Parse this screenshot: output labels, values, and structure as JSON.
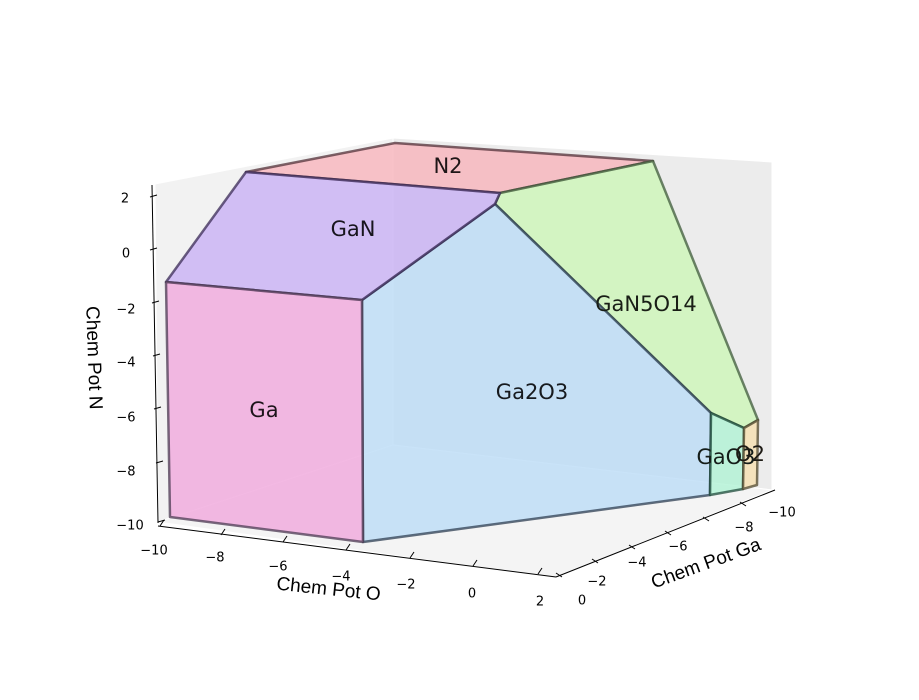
{
  "chart_data": {
    "type": "3d-phase-diagram",
    "title": "",
    "axes": {
      "x": {
        "label": "Chem Pot O",
        "ticks": [
          "−10",
          "−8",
          "−6",
          "−4",
          "−2",
          "0",
          "2"
        ]
      },
      "y": {
        "label": "Chem Pot Ga",
        "ticks": [
          "0",
          "−2",
          "−4",
          "−6",
          "−8",
          "−10"
        ]
      },
      "z": {
        "label": "Chem Pot N",
        "ticks": [
          "2",
          "0",
          "−2",
          "−4",
          "−6",
          "−8",
          "−10"
        ]
      }
    },
    "grid": false,
    "regions": [
      {
        "name": "Ga",
        "color": "#f0a8dc"
      },
      {
        "name": "GaN",
        "color": "#c8b0f4"
      },
      {
        "name": "N2",
        "color": "#f8b4bc"
      },
      {
        "name": "GaN5O14",
        "color": "#cdf6b8"
      },
      {
        "name": "Ga2O3",
        "color": "#bcdcf6"
      },
      {
        "name": "GaO3",
        "color": "#b0f2d4"
      },
      {
        "name": "O2",
        "color": "#f6e0b0"
      }
    ]
  }
}
